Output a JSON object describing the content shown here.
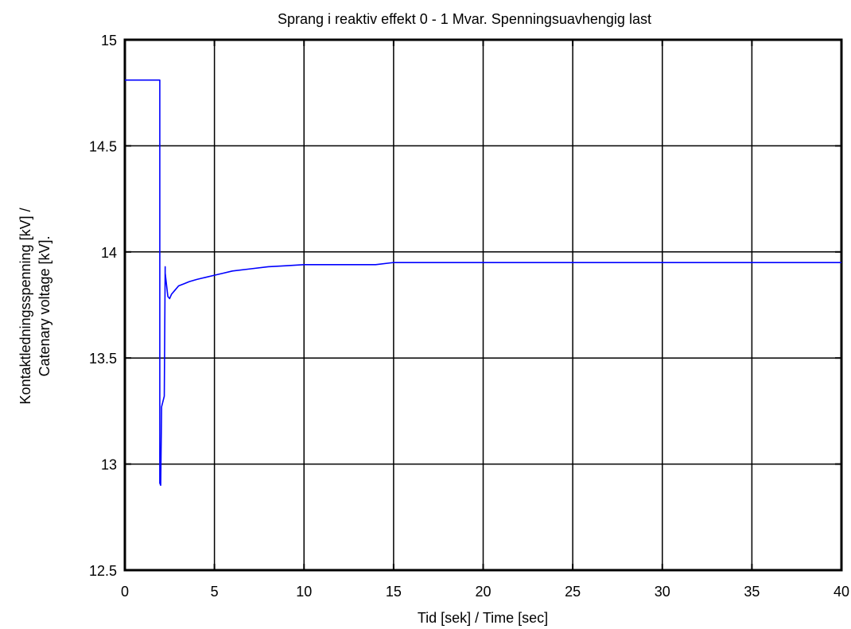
{
  "chart_data": {
    "type": "line",
    "title": "Sprang i reaktiv effekt 0 - 1 Mvar. Spenningsuavhengig last",
    "xlabel": "Tid [sek] / Time [sec]",
    "ylabel_lines": [
      "Kontaktledningsspenning [kV] /",
      "Catenary voltage [kV]."
    ],
    "xlim": [
      0,
      40
    ],
    "ylim": [
      12.5,
      15
    ],
    "xticks": [
      0,
      5,
      10,
      15,
      20,
      25,
      30,
      35,
      40
    ],
    "yticks": [
      12.5,
      13,
      13.5,
      14,
      14.5,
      15
    ],
    "xtick_labels": [
      "0",
      "5",
      "10",
      "15",
      "20",
      "25",
      "30",
      "35",
      "40"
    ],
    "ytick_labels": [
      "12.5",
      "13",
      "13.5",
      "14",
      "14.5",
      "15"
    ],
    "grid": true,
    "series": [
      {
        "color": "#0000ff",
        "x": [
          0,
          1.95,
          1.95,
          2.0,
          2.05,
          2.05,
          2.2,
          2.25,
          2.25,
          2.4,
          2.5,
          2.6,
          2.8,
          3.0,
          3.3,
          3.6,
          4.0,
          4.5,
          5.0,
          5.5,
          6.0,
          7.0,
          8.0,
          9.0,
          10.0,
          12.0,
          14.0,
          15.0,
          20.0,
          30.0,
          40.0
        ],
        "y": [
          14.81,
          14.81,
          12.91,
          12.9,
          13.27,
          13.27,
          13.32,
          13.93,
          13.9,
          13.79,
          13.78,
          13.8,
          13.82,
          13.84,
          13.85,
          13.86,
          13.87,
          13.88,
          13.89,
          13.9,
          13.91,
          13.92,
          13.93,
          13.935,
          13.94,
          13.94,
          13.94,
          13.95,
          13.95,
          13.95,
          13.95
        ]
      }
    ]
  }
}
